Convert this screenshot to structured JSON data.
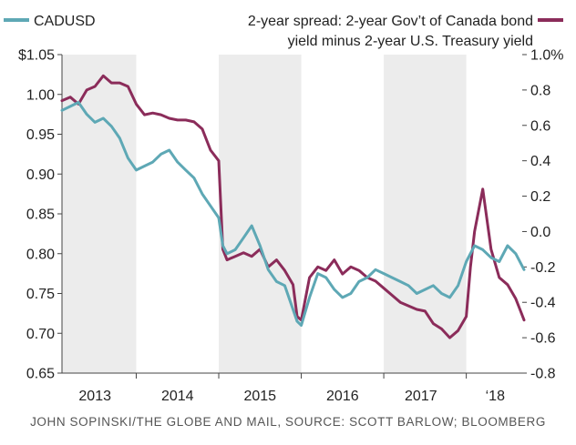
{
  "chart_data": {
    "type": "line",
    "legend": {
      "left_series": "CADUSD",
      "right_series_line1": "2-year spread: 2-year Gov’t of Canada bond",
      "right_series_line2": "yield minus 2-year U.S. Treasury yield"
    },
    "x_tick_labels": [
      "2013",
      "2014",
      "2015",
      "2016",
      "2017",
      "‘18"
    ],
    "left_axis": {
      "ylim": [
        0.65,
        1.05
      ],
      "tick_values": [
        0.65,
        0.7,
        0.75,
        0.8,
        0.85,
        0.9,
        0.95,
        1.0,
        1.05
      ],
      "tick_labels": [
        "0.65",
        "0.70",
        "0.75",
        "0.80",
        "0.85",
        "0.90",
        "0.95",
        "1.00",
        "$1.05"
      ]
    },
    "right_axis": {
      "ylim": [
        -0.8,
        1.0
      ],
      "tick_values": [
        -0.8,
        -0.6,
        -0.4,
        -0.2,
        0.0,
        0.2,
        0.4,
        0.6,
        0.8,
        1.0
      ],
      "tick_labels": [
        "-0.8",
        "-0.6",
        "-0.4",
        "-0.2",
        "0.0",
        "0.2",
        "0.4",
        "0.6",
        "0.8",
        "1.0%"
      ]
    },
    "x_range": [
      2012.6,
      2018.2
    ],
    "shaded_periods": [
      [
        2012.6,
        2013.5
      ],
      [
        2014.5,
        2015.5
      ],
      [
        2016.5,
        2017.5
      ]
    ],
    "grid": false,
    "series": [
      {
        "name": "CADUSD",
        "axis": "left",
        "color": "#5ea8b5",
        "x": [
          2012.6,
          2012.7,
          2012.8,
          2012.9,
          2013.0,
          2013.1,
          2013.2,
          2013.3,
          2013.4,
          2013.5,
          2013.6,
          2013.7,
          2013.8,
          2013.9,
          2014.0,
          2014.1,
          2014.2,
          2014.3,
          2014.4,
          2014.5,
          2014.55,
          2014.6,
          2014.7,
          2014.8,
          2014.9,
          2015.0,
          2015.1,
          2015.2,
          2015.3,
          2015.4,
          2015.45,
          2015.5,
          2015.6,
          2015.7,
          2015.8,
          2015.9,
          2016.0,
          2016.1,
          2016.2,
          2016.3,
          2016.4,
          2016.5,
          2016.6,
          2016.7,
          2016.8,
          2016.9,
          2017.0,
          2017.1,
          2017.2,
          2017.3,
          2017.4,
          2017.5,
          2017.6,
          2017.7,
          2017.8,
          2017.9,
          2018.0,
          2018.1,
          2018.2
        ],
        "values": [
          0.98,
          0.985,
          0.99,
          0.975,
          0.965,
          0.97,
          0.96,
          0.945,
          0.92,
          0.905,
          0.91,
          0.915,
          0.925,
          0.93,
          0.915,
          0.905,
          0.895,
          0.875,
          0.86,
          0.845,
          0.81,
          0.8,
          0.805,
          0.82,
          0.835,
          0.81,
          0.78,
          0.765,
          0.76,
          0.73,
          0.715,
          0.71,
          0.745,
          0.775,
          0.77,
          0.755,
          0.745,
          0.75,
          0.765,
          0.77,
          0.78,
          0.775,
          0.77,
          0.765,
          0.76,
          0.75,
          0.755,
          0.76,
          0.75,
          0.745,
          0.76,
          0.79,
          0.81,
          0.805,
          0.795,
          0.79,
          0.81,
          0.8,
          0.78
        ]
      },
      {
        "name": "2-year spread: 2-year Gov’t of Canada bond yield minus 2-year U.S. Treasury yield",
        "axis": "right",
        "color": "#8b2c5a",
        "x": [
          2012.6,
          2012.7,
          2012.8,
          2012.9,
          2013.0,
          2013.1,
          2013.2,
          2013.3,
          2013.4,
          2013.5,
          2013.6,
          2013.7,
          2013.8,
          2013.9,
          2014.0,
          2014.1,
          2014.2,
          2014.3,
          2014.4,
          2014.5,
          2014.55,
          2014.6,
          2014.7,
          2014.8,
          2014.9,
          2015.0,
          2015.1,
          2015.2,
          2015.3,
          2015.4,
          2015.45,
          2015.5,
          2015.6,
          2015.7,
          2015.8,
          2015.9,
          2016.0,
          2016.1,
          2016.2,
          2016.3,
          2016.4,
          2016.5,
          2016.6,
          2016.7,
          2016.8,
          2016.9,
          2017.0,
          2017.1,
          2017.2,
          2017.3,
          2017.4,
          2017.5,
          2017.55,
          2017.6,
          2017.7,
          2017.8,
          2017.9,
          2018.0,
          2018.1,
          2018.15,
          2018.2
        ],
        "values": [
          0.74,
          0.76,
          0.72,
          0.8,
          0.82,
          0.88,
          0.84,
          0.84,
          0.82,
          0.72,
          0.66,
          0.67,
          0.66,
          0.64,
          0.63,
          0.63,
          0.62,
          0.58,
          0.46,
          0.4,
          -0.1,
          -0.16,
          -0.14,
          -0.12,
          -0.14,
          -0.1,
          -0.2,
          -0.16,
          -0.22,
          -0.3,
          -0.48,
          -0.5,
          -0.26,
          -0.2,
          -0.22,
          -0.16,
          -0.24,
          -0.2,
          -0.22,
          -0.26,
          -0.28,
          -0.32,
          -0.36,
          -0.4,
          -0.42,
          -0.44,
          -0.45,
          -0.52,
          -0.55,
          -0.6,
          -0.56,
          -0.48,
          -0.2,
          0.0,
          0.24,
          -0.1,
          -0.26,
          -0.3,
          -0.38,
          -0.44,
          -0.5
        ]
      }
    ]
  },
  "credit": "JOHN SOPINSKI/THE GLOBE AND MAIL, SOURCE: SCOTT BARLOW; BLOOMBERG"
}
